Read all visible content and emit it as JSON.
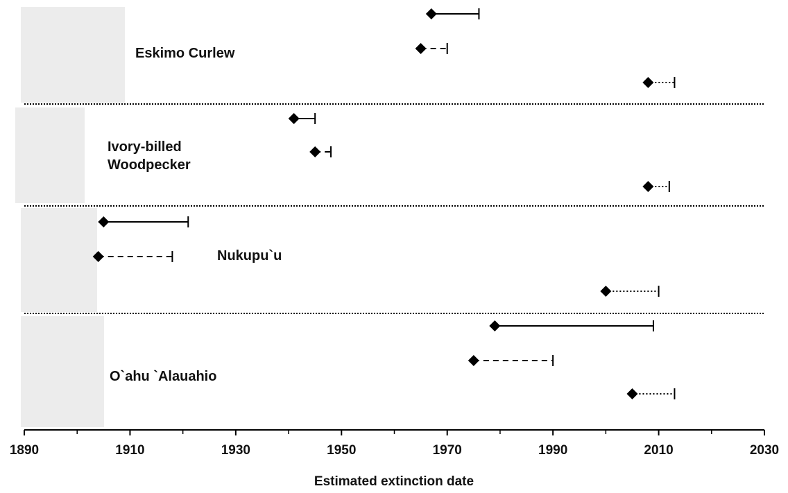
{
  "chart_data": {
    "type": "range-dot",
    "xlabel": "Estimated extinction date",
    "xlim": [
      1890,
      2030
    ],
    "xticks": [
      1890,
      1910,
      1930,
      1950,
      1970,
      1990,
      2010,
      2030
    ],
    "x_minor_ticks": [
      1900,
      1920,
      1940,
      1960,
      1980,
      2000,
      2020
    ],
    "color": "#000000",
    "groups": [
      {
        "label": "Eskimo Curlew",
        "estimates": [
          {
            "style": "solid",
            "estimate": 1967,
            "upper": 1976
          },
          {
            "style": "dashed",
            "estimate": 1965,
            "upper": 1970
          },
          {
            "style": "dotted",
            "estimate": 2008,
            "upper": 2013
          }
        ]
      },
      {
        "label": "Ivory-billed Woodpecker",
        "estimates": [
          {
            "style": "solid",
            "estimate": 1941,
            "upper": 1945
          },
          {
            "style": "dashed",
            "estimate": 1945,
            "upper": 1948
          },
          {
            "style": "dotted",
            "estimate": 2008,
            "upper": 2012
          }
        ]
      },
      {
        "label": "Nukupu`u",
        "estimates": [
          {
            "style": "solid",
            "estimate": 1905,
            "upper": 1921
          },
          {
            "style": "dashed",
            "estimate": 1904,
            "upper": 1918
          },
          {
            "style": "dotted",
            "estimate": 2000,
            "upper": 2010
          }
        ]
      },
      {
        "label": "O`ahu `Alauahio",
        "estimates": [
          {
            "style": "solid",
            "estimate": 1979,
            "upper": 2009
          },
          {
            "style": "dashed",
            "estimate": 1975,
            "upper": 1990
          },
          {
            "style": "dotted",
            "estimate": 2005,
            "upper": 2013
          }
        ]
      }
    ]
  }
}
